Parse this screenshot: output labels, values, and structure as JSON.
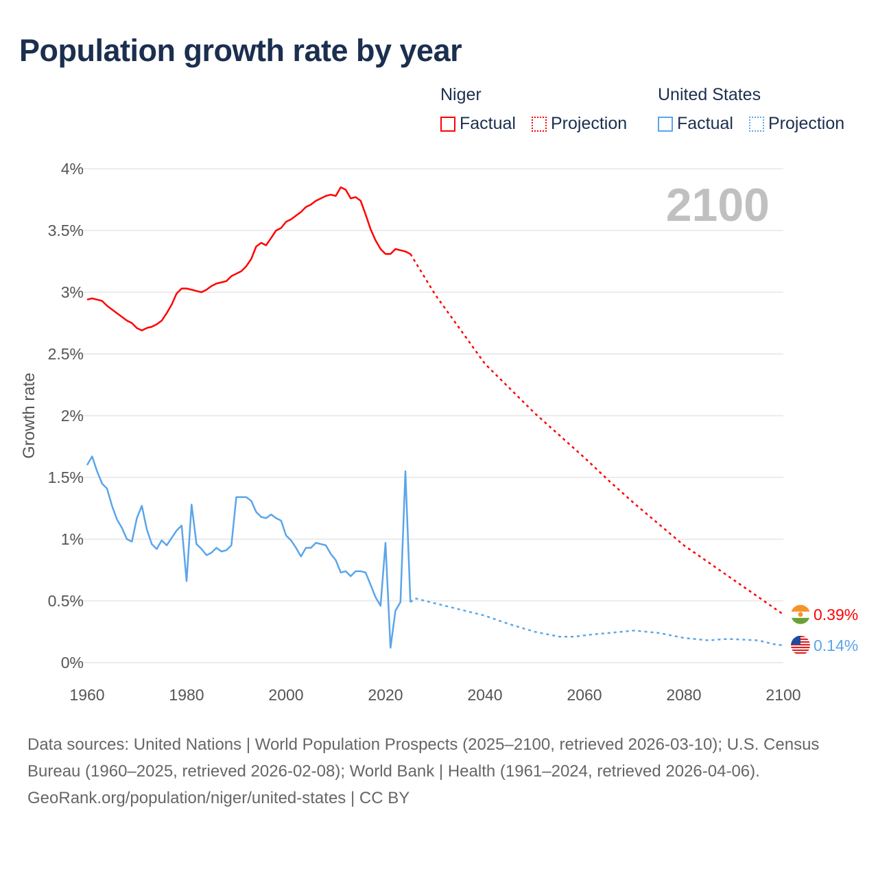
{
  "title": "Population growth rate by year",
  "legend": {
    "groups": [
      {
        "name": "Niger",
        "color": "#ff0000",
        "factual": "Factual",
        "projection": "Projection"
      },
      {
        "name": "United States",
        "color": "#5aa5ea",
        "factual": "Factual",
        "projection": "Projection"
      }
    ]
  },
  "year_label": "2100",
  "footer": {
    "sources": "Data sources: United Nations | World Population Prospects (2025–2100, retrieved 2026-03-10); U.S. Census Bureau (1960–2025, retrieved 2026-02-08); World Bank | Health (1961–2024, retrieved 2026-04-06).",
    "credit": "GeoRank.org/population/niger/united-states | CC BY"
  },
  "chart_data": {
    "type": "line",
    "title": "Population growth rate by year",
    "xlabel": "",
    "ylabel": "Growth rate",
    "xlim": [
      1960,
      2100
    ],
    "ylim": [
      0,
      4
    ],
    "x_ticks": [
      "1960",
      "1980",
      "2000",
      "2020",
      "2040",
      "2060",
      "2080",
      "2100"
    ],
    "y_ticks": [
      {
        "v": 0,
        "label": "0%"
      },
      {
        "v": 0.5,
        "label": "0.5%"
      },
      {
        "v": 1,
        "label": "1%"
      },
      {
        "v": 1.5,
        "label": "1.5%"
      },
      {
        "v": 2,
        "label": "2%"
      },
      {
        "v": 2.5,
        "label": "2.5%"
      },
      {
        "v": 3,
        "label": "3%"
      },
      {
        "v": 3.5,
        "label": "3.5%"
      },
      {
        "v": 4,
        "label": "4%"
      }
    ],
    "grid": true,
    "legend_position": "top-right",
    "series": [
      {
        "name": "Niger",
        "color": "#ff0000",
        "end_label": "0.39%",
        "factual": {
          "x": [
            1960,
            1961,
            1962,
            1963,
            1964,
            1965,
            1966,
            1967,
            1968,
            1969,
            1970,
            1971,
            1972,
            1973,
            1974,
            1975,
            1976,
            1977,
            1978,
            1979,
            1980,
            1981,
            1982,
            1983,
            1984,
            1985,
            1986,
            1987,
            1988,
            1989,
            1990,
            1991,
            1992,
            1993,
            1994,
            1995,
            1996,
            1997,
            1998,
            1999,
            2000,
            2001,
            2002,
            2003,
            2004,
            2005,
            2006,
            2007,
            2008,
            2009,
            2010,
            2011,
            2012,
            2013,
            2014,
            2015,
            2016,
            2017,
            2018,
            2019,
            2020,
            2021,
            2022,
            2023,
            2024,
            2025
          ],
          "y": [
            2.94,
            2.95,
            2.94,
            2.93,
            2.89,
            2.86,
            2.83,
            2.8,
            2.77,
            2.75,
            2.71,
            2.69,
            2.71,
            2.72,
            2.74,
            2.77,
            2.83,
            2.9,
            2.99,
            3.03,
            3.03,
            3.02,
            3.01,
            3.0,
            3.02,
            3.05,
            3.07,
            3.08,
            3.09,
            3.13,
            3.15,
            3.17,
            3.21,
            3.27,
            3.37,
            3.4,
            3.38,
            3.44,
            3.5,
            3.52,
            3.57,
            3.59,
            3.62,
            3.65,
            3.69,
            3.71,
            3.74,
            3.76,
            3.78,
            3.79,
            3.78,
            3.85,
            3.83,
            3.76,
            3.77,
            3.74,
            3.63,
            3.51,
            3.42,
            3.35,
            3.31,
            3.31,
            3.35,
            3.34,
            3.33,
            3.31
          ]
        },
        "projection": {
          "x": [
            2025,
            2030,
            2035,
            2040,
            2045,
            2050,
            2055,
            2060,
            2065,
            2070,
            2075,
            2080,
            2085,
            2090,
            2095,
            2100
          ],
          "y": [
            3.31,
            2.98,
            2.7,
            2.42,
            2.22,
            2.02,
            1.84,
            1.66,
            1.47,
            1.29,
            1.12,
            0.95,
            0.81,
            0.67,
            0.53,
            0.39
          ]
        }
      },
      {
        "name": "United States",
        "color": "#5aa5ea",
        "end_label": "0.14%",
        "factual": {
          "x": [
            1960,
            1961,
            1962,
            1963,
            1964,
            1965,
            1966,
            1967,
            1968,
            1969,
            1970,
            1971,
            1972,
            1973,
            1974,
            1975,
            1976,
            1977,
            1978,
            1979,
            1980,
            1981,
            1982,
            1983,
            1984,
            1985,
            1986,
            1987,
            1988,
            1989,
            1990,
            1991,
            1992,
            1993,
            1994,
            1995,
            1996,
            1997,
            1998,
            1999,
            2000,
            2001,
            2002,
            2003,
            2004,
            2005,
            2006,
            2007,
            2008,
            2009,
            2010,
            2011,
            2012,
            2013,
            2014,
            2015,
            2016,
            2017,
            2018,
            2019,
            2020,
            2021,
            2022,
            2023,
            2024,
            2025
          ],
          "y": [
            1.6,
            1.67,
            1.55,
            1.45,
            1.41,
            1.27,
            1.16,
            1.09,
            1.0,
            0.98,
            1.17,
            1.27,
            1.08,
            0.96,
            0.92,
            0.99,
            0.95,
            1.01,
            1.07,
            1.11,
            0.66,
            1.28,
            0.96,
            0.92,
            0.87,
            0.89,
            0.93,
            0.9,
            0.91,
            0.95,
            1.34,
            1.34,
            1.34,
            1.31,
            1.22,
            1.18,
            1.17,
            1.2,
            1.17,
            1.15,
            1.03,
            0.99,
            0.93,
            0.86,
            0.93,
            0.93,
            0.97,
            0.96,
            0.95,
            0.88,
            0.83,
            0.73,
            0.74,
            0.7,
            0.74,
            0.74,
            0.73,
            0.63,
            0.53,
            0.46,
            0.97,
            0.12,
            0.42,
            0.49,
            1.55,
            0.49
          ]
        },
        "projection": {
          "x": [
            2025,
            2026,
            2030,
            2035,
            2040,
            2045,
            2050,
            2055,
            2058,
            2062,
            2065,
            2070,
            2075,
            2080,
            2085,
            2088,
            2090,
            2095,
            2098,
            2100
          ],
          "y": [
            0.49,
            0.52,
            0.48,
            0.43,
            0.38,
            0.31,
            0.25,
            0.21,
            0.21,
            0.23,
            0.24,
            0.26,
            0.24,
            0.2,
            0.18,
            0.19,
            0.19,
            0.18,
            0.15,
            0.14
          ]
        }
      }
    ]
  }
}
